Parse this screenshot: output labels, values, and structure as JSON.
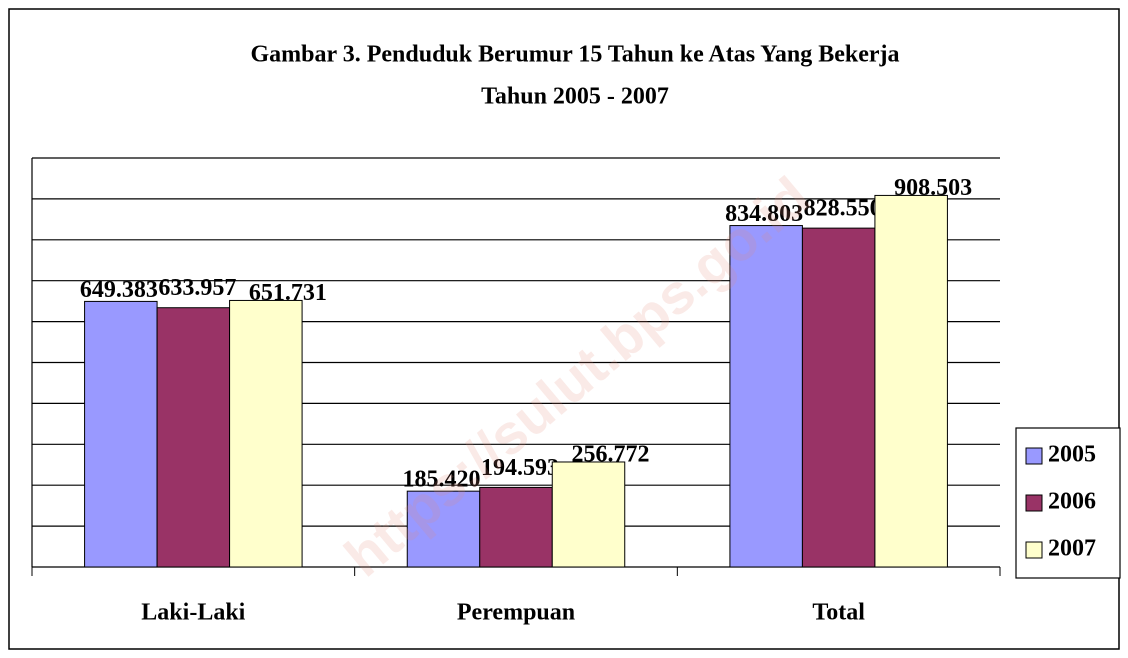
{
  "chart_data": {
    "type": "bar",
    "title": [
      "Gambar 3. Penduduk Berumur 15 Tahun ke Atas Yang Bekerja",
      "Tahun 2005 - 2007"
    ],
    "categories": [
      "Laki-Laki",
      "Perempuan",
      "Total"
    ],
    "series": [
      {
        "name": "2005",
        "color": "#9999ff",
        "values": [
          649383,
          185420,
          834803
        ],
        "value_labels": [
          "649.383",
          "185.420",
          "834.803"
        ]
      },
      {
        "name": "2006",
        "color": "#993366",
        "values": [
          633957,
          194593,
          828550
        ],
        "value_labels": [
          "633.957",
          "194.593",
          "828.550"
        ]
      },
      {
        "name": "2007",
        "color": "#ffffcc",
        "values": [
          651731,
          256772,
          908503
        ],
        "value_labels": [
          "651.731",
          "256.772",
          "908.503"
        ]
      }
    ],
    "ylim": [
      0,
      1000000
    ],
    "yticks": [
      0,
      100000,
      200000,
      300000,
      400000,
      500000,
      600000,
      700000,
      800000,
      900000,
      1000000
    ],
    "grid": true,
    "legend": "right",
    "watermark": "https://sulut.bps.go.id"
  }
}
